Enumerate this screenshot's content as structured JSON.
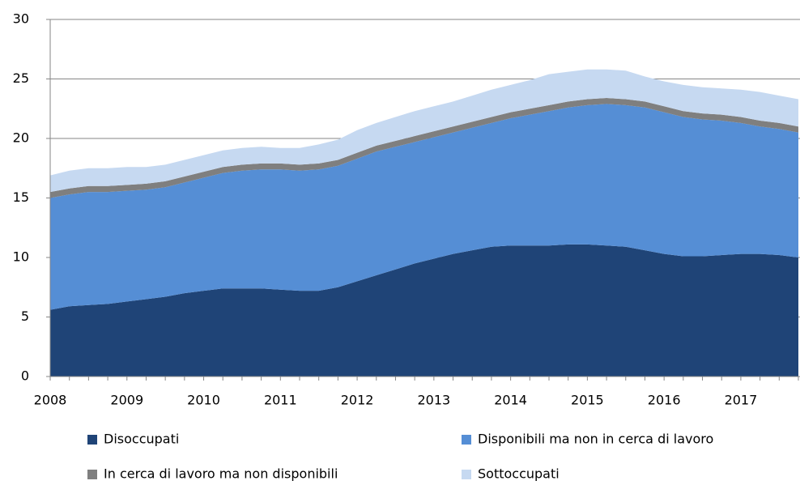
{
  "chart_data": {
    "type": "stacked-area",
    "categories": [
      "2008",
      null,
      null,
      null,
      "2009",
      null,
      null,
      null,
      "2010",
      null,
      null,
      null,
      "2011",
      null,
      null,
      null,
      "2012",
      null,
      null,
      null,
      "2013",
      null,
      null,
      null,
      "2014",
      null,
      null,
      null,
      "2015",
      null,
      null,
      null,
      "2016",
      null,
      null,
      null,
      "2017",
      null,
      null,
      null
    ],
    "series": [
      {
        "name": "Disoccupati",
        "color": "#1f4477",
        "values": [
          5.6,
          5.9,
          6.0,
          6.1,
          6.3,
          6.5,
          6.7,
          7.0,
          7.2,
          7.4,
          7.4,
          7.4,
          7.3,
          7.2,
          7.2,
          7.5,
          8.0,
          8.5,
          9.0,
          9.5,
          9.9,
          10.3,
          10.6,
          10.9,
          11.0,
          11.0,
          11.0,
          11.1,
          11.1,
          11.0,
          10.9,
          10.6,
          10.3,
          10.1,
          10.1,
          10.2,
          10.3,
          10.3,
          10.2,
          10.0
        ]
      },
      {
        "name": "Disponibili ma non in cerca di lavoro",
        "color": "#558ed5",
        "values": [
          9.4,
          9.4,
          9.5,
          9.4,
          9.3,
          9.2,
          9.2,
          9.3,
          9.5,
          9.7,
          9.9,
          10.0,
          10.1,
          10.1,
          10.2,
          10.2,
          10.3,
          10.4,
          10.3,
          10.2,
          10.2,
          10.2,
          10.3,
          10.4,
          10.7,
          11.0,
          11.3,
          11.5,
          11.7,
          11.9,
          11.9,
          12.0,
          11.9,
          11.7,
          11.5,
          11.3,
          11.0,
          10.7,
          10.6,
          10.5
        ]
      },
      {
        "name": "In cerca di lavoro ma non disponibili",
        "color": "#7f7f7f",
        "values": [
          0.5,
          0.5,
          0.5,
          0.5,
          0.5,
          0.5,
          0.5,
          0.5,
          0.5,
          0.5,
          0.5,
          0.5,
          0.5,
          0.5,
          0.5,
          0.5,
          0.5,
          0.5,
          0.5,
          0.5,
          0.5,
          0.5,
          0.5,
          0.5,
          0.5,
          0.5,
          0.5,
          0.5,
          0.5,
          0.5,
          0.5,
          0.5,
          0.5,
          0.5,
          0.5,
          0.5,
          0.5,
          0.5,
          0.5,
          0.5
        ]
      },
      {
        "name": "Sottoccupati",
        "color": "#c6d9f1",
        "values": [
          1.4,
          1.5,
          1.5,
          1.5,
          1.5,
          1.4,
          1.4,
          1.4,
          1.4,
          1.4,
          1.4,
          1.4,
          1.3,
          1.4,
          1.6,
          1.7,
          1.9,
          1.9,
          2.0,
          2.1,
          2.1,
          2.1,
          2.2,
          2.3,
          2.3,
          2.4,
          2.6,
          2.5,
          2.5,
          2.4,
          2.4,
          2.1,
          2.1,
          2.2,
          2.2,
          2.2,
          2.3,
          2.4,
          2.3,
          2.3
        ]
      }
    ],
    "ylim": [
      0,
      30
    ],
    "yticks": [
      0,
      5,
      10,
      15,
      20,
      25,
      30
    ],
    "grid": true,
    "legend": "bottom"
  }
}
